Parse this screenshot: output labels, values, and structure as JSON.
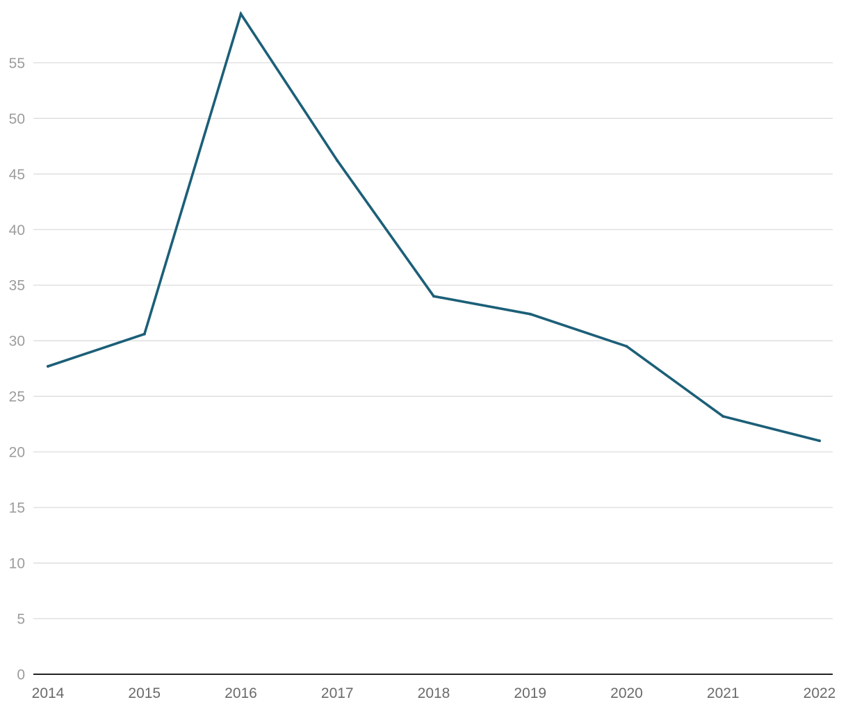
{
  "chart_data": {
    "type": "line",
    "title": "",
    "xlabel": "",
    "ylabel": "",
    "x": [
      "2014",
      "2015",
      "2016",
      "2017",
      "2018",
      "2019",
      "2020",
      "2021",
      "2022"
    ],
    "series": [
      {
        "values": [
          27.7,
          30.6,
          59.4,
          46.2,
          34.0,
          32.4,
          29.5,
          23.2,
          21.0
        ],
        "color": "#1c5f78"
      }
    ],
    "ylim": [
      0,
      59.4
    ],
    "yticks": [
      0,
      5,
      10,
      15,
      20,
      25,
      30,
      35,
      40,
      45,
      50,
      55
    ],
    "grid": true,
    "legend": "none",
    "colors": {
      "line": "#1c5f78",
      "grid": "#dcdcdc",
      "baseline": "#222222",
      "y_tick_text": "#9c9c9c",
      "x_tick_text": "#6a6a6a"
    }
  }
}
